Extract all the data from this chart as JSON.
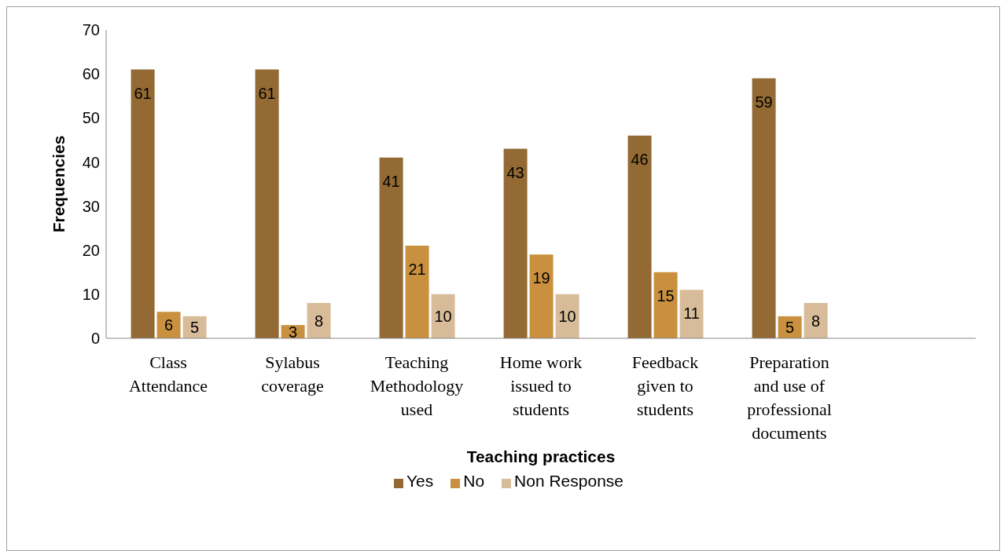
{
  "chart_data": {
    "type": "bar",
    "xlabel": "Teaching practices",
    "ylabel": "Frequencies",
    "categories": [
      "Class Attendance",
      "Sylabus coverage",
      "Teaching Methodology used",
      "Home work issued to students",
      "Feedback given to students",
      "Preparation and use of professional documents",
      null
    ],
    "series": [
      {
        "name": "Yes",
        "color": "#936a33",
        "values": [
          61,
          61,
          41,
          43,
          46,
          59,
          null
        ]
      },
      {
        "name": "No",
        "color": "#c9913f",
        "values": [
          6,
          3,
          21,
          19,
          15,
          5,
          null
        ]
      },
      {
        "name": "Non Response",
        "color": "#d8bc9a",
        "values": [
          5,
          8,
          10,
          10,
          11,
          8,
          null
        ]
      }
    ],
    "ylim": [
      0,
      70
    ],
    "yticks": [
      0,
      10,
      20,
      30,
      40,
      50,
      60,
      70
    ],
    "grid": false,
    "legend": "bottom",
    "data_labels": true
  }
}
